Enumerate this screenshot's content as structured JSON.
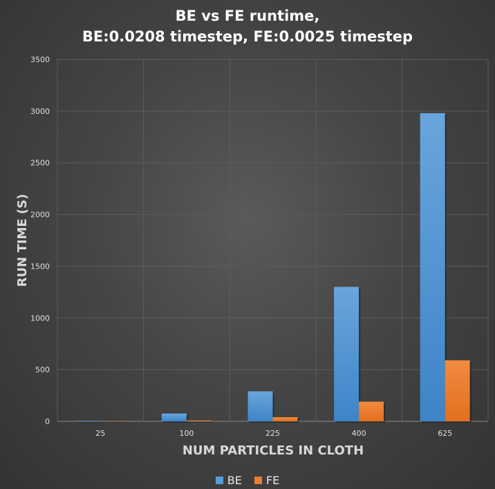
{
  "chart_data": {
    "type": "bar",
    "title_lines": [
      "BE vs FE runtime,",
      "BE:0.0208 timestep, FE:0.0025 timestep"
    ],
    "xlabel": "NUM PARTICLES IN CLOTH",
    "ylabel": "RUN TIME (S)",
    "categories": [
      "25",
      "100",
      "225",
      "400",
      "625"
    ],
    "ylim": [
      0,
      3500
    ],
    "yticks": [
      0,
      500,
      1000,
      1500,
      2000,
      2500,
      3000,
      3500
    ],
    "grid": true,
    "legend_position": "bottom",
    "series": [
      {
        "name": "BE",
        "values": [
          5,
          75,
          290,
          1300,
          2980
        ],
        "color": "#5b9bd5"
      },
      {
        "name": "FE",
        "values": [
          3,
          8,
          40,
          190,
          590
        ],
        "color": "#ed7d31"
      }
    ]
  }
}
